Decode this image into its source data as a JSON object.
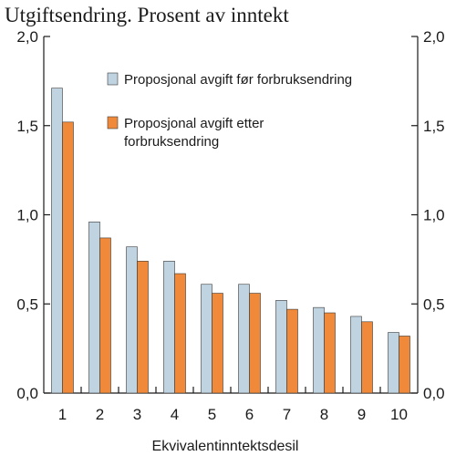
{
  "chart_data": {
    "type": "bar",
    "title": "Utgiftsendring. Prosent av inntekt",
    "xlabel": "Ekvivalentinntektsdesil",
    "ylabel": "",
    "categories": [
      "1",
      "2",
      "3",
      "4",
      "5",
      "6",
      "7",
      "8",
      "9",
      "10"
    ],
    "series": [
      {
        "name": "Proposjonal avgift før forbruksendring",
        "color": "#bfd3e1",
        "values": [
          1.71,
          0.96,
          0.82,
          0.74,
          0.61,
          0.61,
          0.52,
          0.48,
          0.43,
          0.34
        ]
      },
      {
        "name": "Proposjonal avgift etter forbruksendring",
        "name_lines": [
          "Proposjonal avgift etter",
          "forbruksendring"
        ],
        "color": "#f08a3a",
        "values": [
          1.52,
          0.87,
          0.74,
          0.67,
          0.56,
          0.56,
          0.47,
          0.45,
          0.4,
          0.32
        ]
      }
    ],
    "ylim": [
      0,
      2
    ],
    "yticks": [
      "0,0",
      "0,5",
      "1,0",
      "1,5",
      "2,0"
    ],
    "ytick_values": [
      0,
      0.5,
      1.0,
      1.5,
      2.0
    ],
    "grid": false,
    "legend_position": "top-right",
    "axis_color": "#1a1a1a"
  }
}
